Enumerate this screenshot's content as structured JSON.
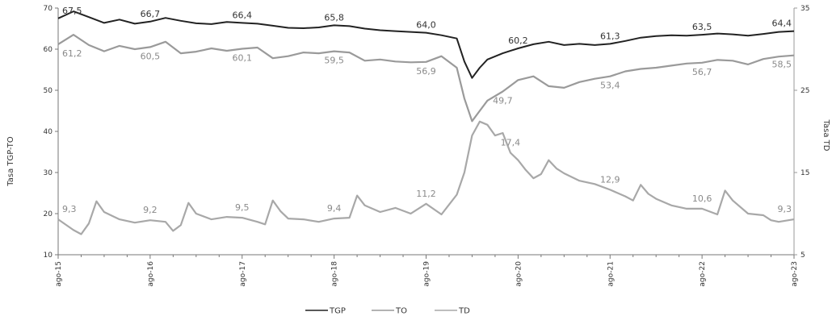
{
  "chart_data": {
    "type": "line",
    "title": "",
    "ylabel": "Tasa TGP-TO",
    "y2label": "Tasa TD",
    "ylim": [
      10,
      70
    ],
    "y2lim": [
      5,
      35
    ],
    "yticks": [
      "10",
      "20",
      "30",
      "40",
      "50",
      "60",
      "70"
    ],
    "y2ticks": [
      "5",
      "15",
      "25",
      "35"
    ],
    "xlim": [
      0,
      96
    ],
    "xticks": [
      {
        "label": "ago-15",
        "x": 0
      },
      {
        "label": "ago-16",
        "x": 12
      },
      {
        "label": "ago-17",
        "x": 24
      },
      {
        "label": "ago-18",
        "x": 36
      },
      {
        "label": "ago-19",
        "x": 48
      },
      {
        "label": "ago-20",
        "x": 60
      },
      {
        "label": "ago-21",
        "x": 72
      },
      {
        "label": "ago-22",
        "x": 84
      },
      {
        "label": "ago-23",
        "x": 96
      }
    ],
    "legend_position": "bottom",
    "colors": {
      "TGP": "#222222",
      "TO": "#9a9a9a",
      "TD": "#a8a8a8"
    },
    "series": [
      {
        "name": "TGP",
        "axis": "left",
        "points": [
          [
            0,
            67.5
          ],
          [
            2,
            69.2
          ],
          [
            4,
            67.8
          ],
          [
            6,
            66.4
          ],
          [
            8,
            67.2
          ],
          [
            10,
            66.2
          ],
          [
            12,
            66.7
          ],
          [
            14,
            67.6
          ],
          [
            16,
            66.9
          ],
          [
            18,
            66.3
          ],
          [
            20,
            66.1
          ],
          [
            22,
            66.6
          ],
          [
            24,
            66.4
          ],
          [
            26,
            66.2
          ],
          [
            28,
            65.7
          ],
          [
            30,
            65.2
          ],
          [
            32,
            65.1
          ],
          [
            34,
            65.3
          ],
          [
            36,
            65.8
          ],
          [
            38,
            65.6
          ],
          [
            40,
            65.0
          ],
          [
            42,
            64.6
          ],
          [
            44,
            64.4
          ],
          [
            46,
            64.2
          ],
          [
            48,
            64.0
          ],
          [
            50,
            63.4
          ],
          [
            52,
            62.6
          ],
          [
            53,
            57.0
          ],
          [
            54,
            53.0
          ],
          [
            55,
            55.5
          ],
          [
            56,
            57.5
          ],
          [
            58,
            59.0
          ],
          [
            60,
            60.2
          ],
          [
            62,
            61.2
          ],
          [
            64,
            61.8
          ],
          [
            66,
            61.0
          ],
          [
            68,
            61.3
          ],
          [
            70,
            61.0
          ],
          [
            72,
            61.3
          ],
          [
            74,
            62.0
          ],
          [
            76,
            62.8
          ],
          [
            78,
            63.2
          ],
          [
            80,
            63.4
          ],
          [
            82,
            63.3
          ],
          [
            84,
            63.5
          ],
          [
            86,
            63.8
          ],
          [
            88,
            63.6
          ],
          [
            90,
            63.3
          ],
          [
            92,
            63.7
          ],
          [
            94,
            64.2
          ],
          [
            96,
            64.4
          ]
        ]
      },
      {
        "name": "TO",
        "axis": "left",
        "points": [
          [
            0,
            61.2
          ],
          [
            2,
            63.5
          ],
          [
            4,
            61.0
          ],
          [
            6,
            59.5
          ],
          [
            8,
            60.8
          ],
          [
            10,
            60.0
          ],
          [
            12,
            60.5
          ],
          [
            14,
            61.8
          ],
          [
            16,
            59.0
          ],
          [
            18,
            59.4
          ],
          [
            20,
            60.2
          ],
          [
            22,
            59.6
          ],
          [
            24,
            60.1
          ],
          [
            26,
            60.4
          ],
          [
            28,
            57.8
          ],
          [
            30,
            58.3
          ],
          [
            32,
            59.2
          ],
          [
            34,
            59.0
          ],
          [
            36,
            59.5
          ],
          [
            38,
            59.2
          ],
          [
            40,
            57.2
          ],
          [
            42,
            57.5
          ],
          [
            44,
            57.0
          ],
          [
            46,
            56.8
          ],
          [
            48,
            56.9
          ],
          [
            50,
            58.3
          ],
          [
            52,
            55.5
          ],
          [
            53,
            48.0
          ],
          [
            54,
            42.5
          ],
          [
            55,
            45.0
          ],
          [
            56,
            47.5
          ],
          [
            58,
            49.7
          ],
          [
            60,
            52.5
          ],
          [
            62,
            53.4
          ],
          [
            64,
            51.0
          ],
          [
            66,
            50.6
          ],
          [
            68,
            52.0
          ],
          [
            70,
            52.8
          ],
          [
            72,
            53.4
          ],
          [
            74,
            54.6
          ],
          [
            76,
            55.2
          ],
          [
            78,
            55.5
          ],
          [
            80,
            56.0
          ],
          [
            82,
            56.5
          ],
          [
            84,
            56.7
          ],
          [
            86,
            57.4
          ],
          [
            88,
            57.2
          ],
          [
            90,
            56.3
          ],
          [
            92,
            57.6
          ],
          [
            94,
            58.2
          ],
          [
            96,
            58.5
          ]
        ]
      },
      {
        "name": "TD",
        "axis": "right",
        "points": [
          [
            0,
            9.3
          ],
          [
            2,
            8.0
          ],
          [
            3,
            7.5
          ],
          [
            4,
            8.8
          ],
          [
            5,
            11.5
          ],
          [
            6,
            10.2
          ],
          [
            8,
            9.3
          ],
          [
            10,
            8.9
          ],
          [
            12,
            9.2
          ],
          [
            14,
            9.0
          ],
          [
            15,
            7.9
          ],
          [
            16,
            8.6
          ],
          [
            17,
            11.3
          ],
          [
            18,
            10.0
          ],
          [
            20,
            9.3
          ],
          [
            22,
            9.6
          ],
          [
            24,
            9.5
          ],
          [
            26,
            9.0
          ],
          [
            27,
            8.7
          ],
          [
            28,
            11.6
          ],
          [
            29,
            10.3
          ],
          [
            30,
            9.4
          ],
          [
            32,
            9.3
          ],
          [
            34,
            9.0
          ],
          [
            36,
            9.4
          ],
          [
            38,
            9.5
          ],
          [
            39,
            12.2
          ],
          [
            40,
            11.0
          ],
          [
            42,
            10.2
          ],
          [
            44,
            10.7
          ],
          [
            46,
            10.0
          ],
          [
            48,
            11.2
          ],
          [
            50,
            9.9
          ],
          [
            52,
            12.3
          ],
          [
            53,
            15.0
          ],
          [
            54,
            19.5
          ],
          [
            55,
            21.2
          ],
          [
            56,
            20.8
          ],
          [
            57,
            19.5
          ],
          [
            58,
            19.8
          ],
          [
            59,
            17.4
          ],
          [
            60,
            16.5
          ],
          [
            61,
            15.3
          ],
          [
            62,
            14.3
          ],
          [
            63,
            14.8
          ],
          [
            64,
            16.5
          ],
          [
            65,
            15.5
          ],
          [
            66,
            14.9
          ],
          [
            68,
            14.0
          ],
          [
            70,
            13.6
          ],
          [
            72,
            12.9
          ],
          [
            74,
            12.1
          ],
          [
            75,
            11.6
          ],
          [
            76,
            13.5
          ],
          [
            77,
            12.4
          ],
          [
            78,
            11.8
          ],
          [
            80,
            11.0
          ],
          [
            82,
            10.6
          ],
          [
            84,
            10.6
          ],
          [
            86,
            9.9
          ],
          [
            87,
            12.8
          ],
          [
            88,
            11.6
          ],
          [
            90,
            10.0
          ],
          [
            92,
            9.8
          ],
          [
            93,
            9.2
          ],
          [
            94,
            9.0
          ],
          [
            96,
            9.3
          ]
        ]
      }
    ],
    "labels": [
      {
        "series": "TGP",
        "x": 0,
        "y": 67.5,
        "text": "67,5"
      },
      {
        "series": "TGP",
        "x": 12,
        "y": 66.7,
        "text": "66,7"
      },
      {
        "series": "TGP",
        "x": 24,
        "y": 66.4,
        "text": "66,4"
      },
      {
        "series": "TGP",
        "x": 36,
        "y": 65.8,
        "text": "65,8"
      },
      {
        "series": "TGP",
        "x": 48,
        "y": 64.0,
        "text": "64,0"
      },
      {
        "series": "TGP",
        "x": 60,
        "y": 60.2,
        "text": "60,2"
      },
      {
        "series": "TGP",
        "x": 72,
        "y": 61.3,
        "text": "61,3"
      },
      {
        "series": "TGP",
        "x": 84,
        "y": 63.5,
        "text": "63,5"
      },
      {
        "series": "TGP",
        "x": 96,
        "y": 64.4,
        "text": "64,4"
      },
      {
        "series": "TO",
        "x": 0,
        "y": 61.2,
        "text": "61,2"
      },
      {
        "series": "TO",
        "x": 12,
        "y": 60.5,
        "text": "60,5"
      },
      {
        "series": "TO",
        "x": 24,
        "y": 60.1,
        "text": "60,1"
      },
      {
        "series": "TO",
        "x": 36,
        "y": 59.5,
        "text": "59,5"
      },
      {
        "series": "TO",
        "x": 48,
        "y": 56.9,
        "text": "56,9"
      },
      {
        "series": "TO",
        "x": 58,
        "y": 49.7,
        "text": "49,7"
      },
      {
        "series": "TO",
        "x": 72,
        "y": 53.4,
        "text": "53,4"
      },
      {
        "series": "TO",
        "x": 84,
        "y": 56.7,
        "text": "56,7"
      },
      {
        "series": "TO",
        "x": 96,
        "y": 58.5,
        "text": "58,5"
      },
      {
        "series": "TD",
        "x": 0,
        "y": 9.3,
        "text": "9,3"
      },
      {
        "series": "TD",
        "x": 12,
        "y": 9.2,
        "text": "9,2"
      },
      {
        "series": "TD",
        "x": 24,
        "y": 9.5,
        "text": "9,5"
      },
      {
        "series": "TD",
        "x": 36,
        "y": 9.4,
        "text": "9,4"
      },
      {
        "series": "TD",
        "x": 48,
        "y": 11.2,
        "text": "11,2"
      },
      {
        "series": "TD",
        "x": 59,
        "y": 17.4,
        "text": "17,4"
      },
      {
        "series": "TD",
        "x": 72,
        "y": 12.9,
        "text": "12,9"
      },
      {
        "series": "TD",
        "x": 84,
        "y": 10.6,
        "text": "10,6"
      },
      {
        "series": "TD",
        "x": 96,
        "y": 9.3,
        "text": "9,3"
      }
    ]
  }
}
